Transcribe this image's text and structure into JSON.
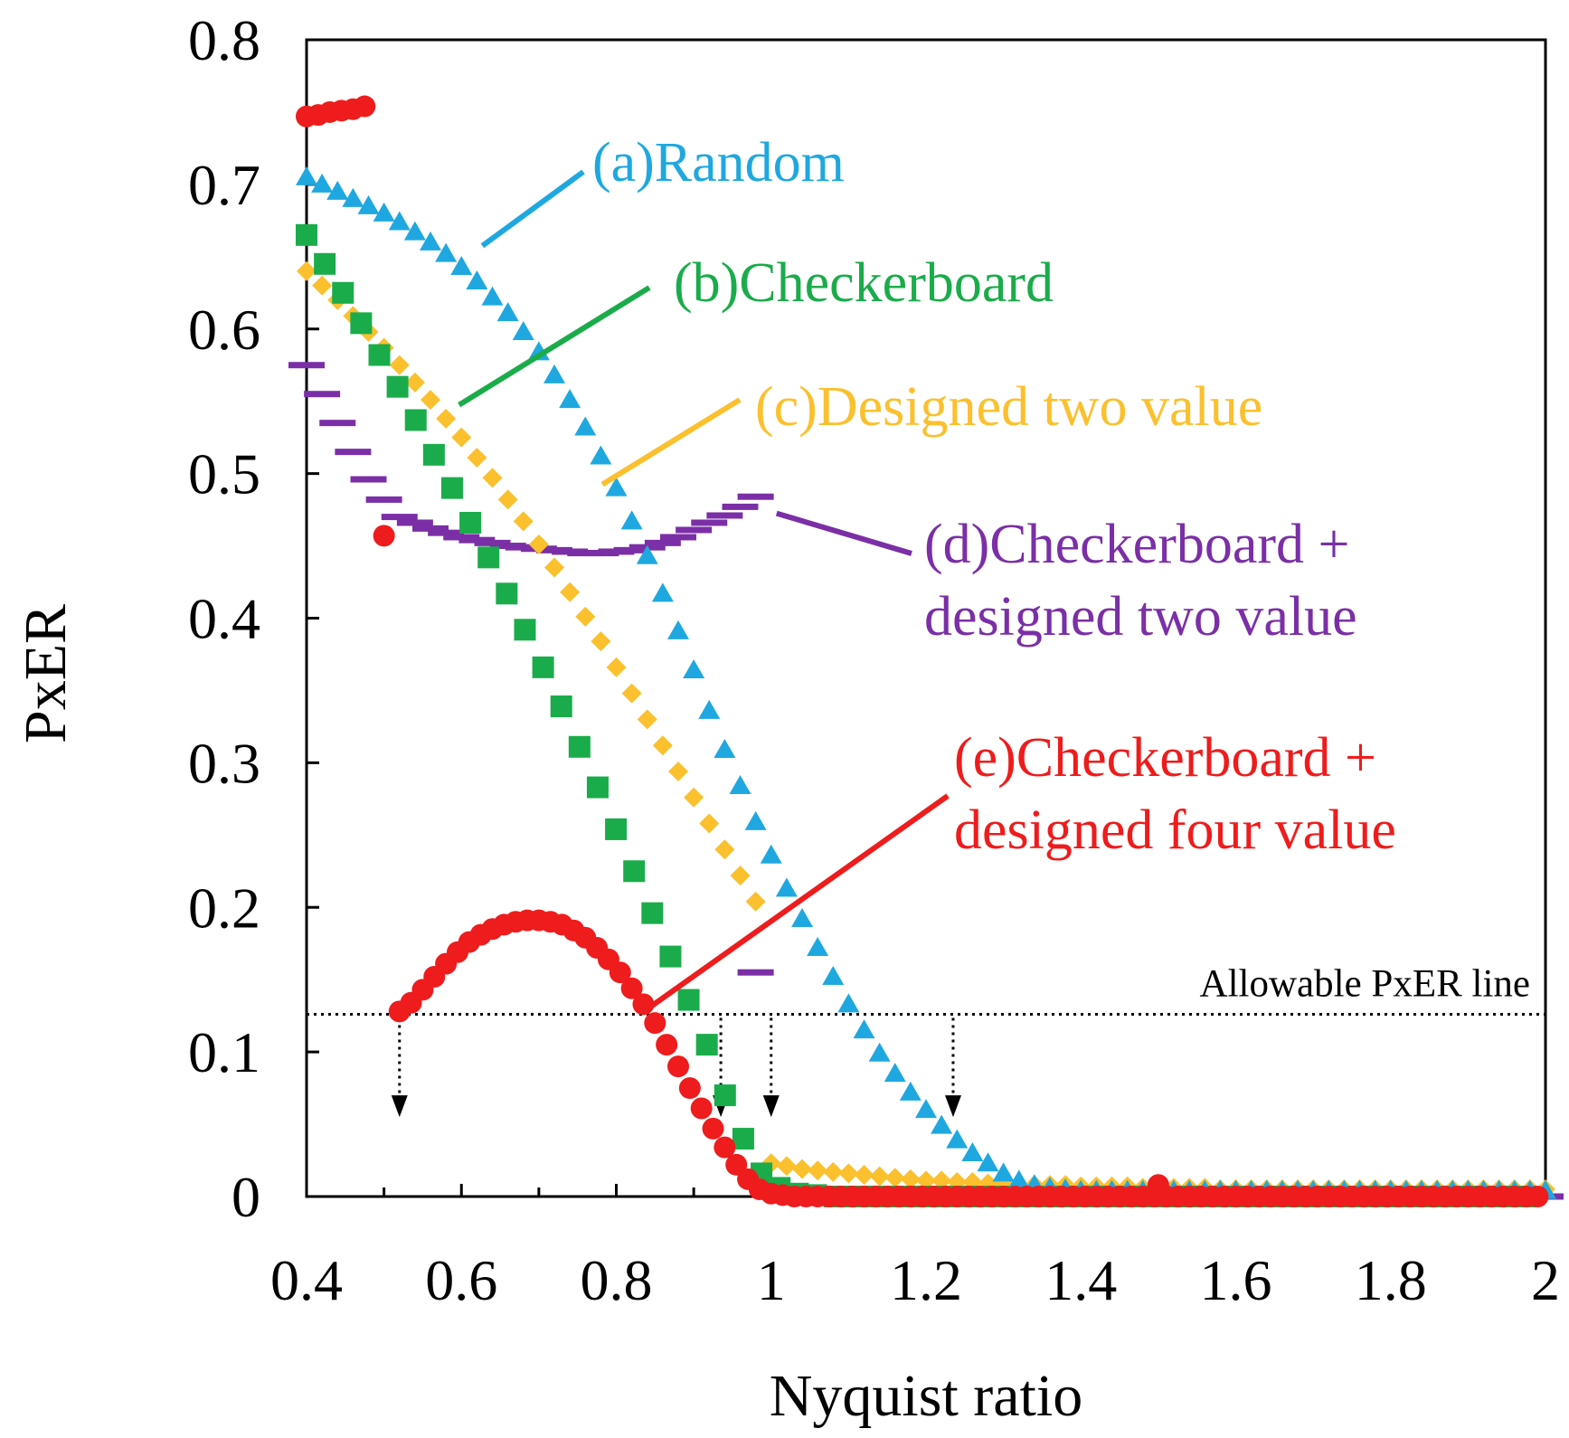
{
  "chart_data": {
    "type": "scatter",
    "xlabel": "Nyquist ratio",
    "ylabel": "PxER",
    "xlim": [
      0.4,
      2.0
    ],
    "ylim": [
      0,
      0.8
    ],
    "xticks": [
      0.4,
      0.6,
      0.8,
      1.0,
      1.2,
      1.4,
      1.6,
      1.8,
      2.0
    ],
    "xtick_labels": [
      "0.4",
      "0.6",
      "0.8",
      "1",
      "1.2",
      "1.4",
      "1.6",
      "1.8",
      "2"
    ],
    "yticks": [
      0,
      0.1,
      0.2,
      0.3,
      0.4,
      0.5,
      0.6,
      0.7,
      0.8
    ],
    "ytick_labels": [
      "0",
      "0.1",
      "0.2",
      "0.3",
      "0.4",
      "0.5",
      "0.6",
      "0.7",
      "0.8"
    ],
    "grid": false,
    "series": [
      {
        "id": "a",
        "name": "(a)Random",
        "marker": "triangle",
        "color": "#1fa8e0",
        "x_start": 0.4,
        "x_step": 0.02,
        "values": [
          0.705,
          0.7,
          0.695,
          0.69,
          0.685,
          0.68,
          0.674,
          0.667,
          0.66,
          0.652,
          0.643,
          0.633,
          0.622,
          0.611,
          0.598,
          0.584,
          0.568,
          0.551,
          0.532,
          0.512,
          0.49,
          0.467,
          0.443,
          0.417,
          0.391,
          0.364,
          0.336,
          0.309,
          0.284,
          0.259,
          0.236,
          0.213,
          0.192,
          0.172,
          0.152,
          0.133,
          0.115,
          0.099,
          0.085,
          0.072,
          0.06,
          0.049,
          0.039,
          0.03,
          0.023,
          0.016,
          0.011,
          0.008,
          0.006,
          0.005,
          0.004,
          0.004,
          0.004,
          0.004,
          0.004,
          0.004,
          0.004,
          0.004,
          0.004,
          0.004,
          0.004,
          0.004,
          0.004,
          0.004,
          0.004,
          0.004,
          0.004,
          0.004,
          0.004,
          0.004,
          0.004,
          0.004,
          0.004,
          0.004,
          0.004,
          0.004,
          0.004,
          0.004,
          0.004,
          0.004,
          0.004
        ]
      },
      {
        "id": "b",
        "name": "(b)Checkerboard",
        "marker": "square",
        "color": "#1aac4a",
        "x_start": 0.4,
        "x_step": 0.0235,
        "values": [
          0.665,
          0.645,
          0.625,
          0.604,
          0.582,
          0.56,
          0.537,
          0.513,
          0.49,
          0.466,
          0.442,
          0.417,
          0.392,
          0.366,
          0.339,
          0.311,
          0.283,
          0.254,
          0.225,
          0.196,
          0.166,
          0.136,
          0.105,
          0.07,
          0.04,
          0.016,
          0.006,
          0.002,
          0.001,
          0.0,
          0.0,
          0.0,
          0.0,
          0.0,
          0.0,
          0.0,
          0.0,
          0.0,
          0.0,
          0.0,
          0.0,
          0.0,
          0.0,
          0.0,
          0.0,
          0.0,
          0.0,
          0.0,
          0.0,
          0.0,
          0.0,
          0.0,
          0.0,
          0.0,
          0.0,
          0.0,
          0.0,
          0.0,
          0.0,
          0.0,
          0.0,
          0.0,
          0.0,
          0.0,
          0.0,
          0.0,
          0.0,
          0.0
        ]
      },
      {
        "id": "c",
        "name": "(c)Designed two value",
        "marker": "diamond",
        "color": "#fbc02d",
        "x_start": 0.4,
        "x_step": 0.02,
        "gap_after": 0.98,
        "values": [
          0.64,
          0.63,
          0.62,
          0.609,
          0.598,
          0.587,
          0.575,
          0.563,
          0.551,
          0.538,
          0.525,
          0.511,
          0.497,
          0.482,
          0.467,
          0.451,
          0.435,
          0.418,
          0.401,
          0.384,
          0.366,
          0.348,
          0.33,
          0.312,
          0.294,
          0.276,
          0.258,
          0.24,
          0.222,
          0.204
        ],
        "tail_x_start": 1.0,
        "tail_x_step": 0.02,
        "tail_values": [
          0.023,
          0.021,
          0.019,
          0.018,
          0.017,
          0.016,
          0.015,
          0.014,
          0.013,
          0.012,
          0.011,
          0.011,
          0.01,
          0.01,
          0.009,
          0.009,
          0.008,
          0.008,
          0.008,
          0.008,
          0.007,
          0.007,
          0.007,
          0.007,
          0.006,
          0.006,
          0.006,
          0.006,
          0.006,
          0.005,
          0.005,
          0.005,
          0.005,
          0.005,
          0.005,
          0.005,
          0.005,
          0.005,
          0.005,
          0.005,
          0.005,
          0.005,
          0.005,
          0.005,
          0.005,
          0.005,
          0.005,
          0.005,
          0.005,
          0.005,
          0.005
        ]
      },
      {
        "id": "d",
        "name": "(d)Checkerboard + designed two value",
        "marker": "dash",
        "color": "#7b2fa6",
        "x_start": 0.4,
        "x_step": 0.02,
        "values": [
          0.575,
          0.555,
          0.535,
          0.515,
          0.496,
          0.482,
          0.47,
          0.466,
          0.462,
          0.459,
          0.456,
          0.454,
          0.452,
          0.45,
          0.449,
          0.448,
          0.447,
          0.446,
          0.445,
          0.445,
          0.446,
          0.447,
          0.449,
          0.452,
          0.456,
          0.461,
          0.466,
          0.471,
          0.477,
          0.484
        ],
        "extra_points": [
          [
            0.98,
            0.155
          ],
          [
            2.0,
            0.0
          ]
        ]
      },
      {
        "id": "e",
        "name": "(e)Checkerboard + designed four value",
        "marker": "circle",
        "color": "#ee1c1c",
        "segment1": [
          [
            0.4,
            0.747
          ],
          [
            0.415,
            0.748
          ],
          [
            0.43,
            0.75
          ],
          [
            0.445,
            0.751
          ],
          [
            0.46,
            0.752
          ],
          [
            0.475,
            0.754
          ],
          [
            0.5,
            0.457
          ]
        ],
        "x_start": 0.52,
        "x_step": 0.015,
        "values": [
          0.128,
          0.134,
          0.143,
          0.152,
          0.161,
          0.169,
          0.176,
          0.181,
          0.185,
          0.188,
          0.19,
          0.191,
          0.191,
          0.19,
          0.188,
          0.184,
          0.179,
          0.172,
          0.164,
          0.155,
          0.144,
          0.133,
          0.12,
          0.105,
          0.09,
          0.075,
          0.061,
          0.047,
          0.034,
          0.022,
          0.012,
          0.005,
          0.002,
          0.001,
          0.0,
          0.0,
          0.0,
          0.0,
          0.0,
          0.0,
          0.0,
          0.0,
          0.0,
          0.0,
          0.0,
          0.0,
          0.0,
          0.0,
          0.0,
          0.0,
          0.0,
          0.0,
          0.0,
          0.0,
          0.0,
          0.0,
          0.0,
          0.0,
          0.0,
          0.0,
          0.0,
          0.0,
          0.0,
          0.0,
          0.0,
          0.0,
          0.0,
          0.0,
          0.0,
          0.0,
          0.0,
          0.0,
          0.0,
          0.0,
          0.0,
          0.0,
          0.0,
          0.0,
          0.0,
          0.0,
          0.0,
          0.0,
          0.0,
          0.0,
          0.0,
          0.0,
          0.0,
          0.0,
          0.0,
          0.0,
          0.0,
          0.0,
          0.0,
          0.0,
          0.0,
          0.0,
          0.0,
          0.0,
          0.0,
          0.0,
          0.0
        ],
        "bump_x": 1.5,
        "bump_value": 0.008
      }
    ],
    "reference_line": {
      "y": 0.126,
      "label": "Allowable  PxER line",
      "style": "dotted",
      "color": "#000000"
    },
    "arrows": [
      0.52,
      0.935,
      1.0,
      1.235
    ],
    "annotations": [
      {
        "series": "a",
        "lines": [
          "(a)Random"
        ],
        "color": "#1fa8e0",
        "points_to": [
          0.62,
          0.655
        ]
      },
      {
        "series": "b",
        "lines": [
          "(b)Checkerboard"
        ],
        "color": "#1aac4a",
        "points_to": [
          0.59,
          0.545
        ]
      },
      {
        "series": "c",
        "lines": [
          "(c)Designed two value"
        ],
        "color": "#fbc02d",
        "points_to": [
          0.775,
          0.49
        ]
      },
      {
        "series": "d",
        "lines": [
          "(d)Checkerboard +",
          "designed two value"
        ],
        "color": "#7b2fa6",
        "points_to": [
          1.0,
          0.47
        ]
      },
      {
        "series": "e",
        "lines": [
          "(e)Checkerboard +",
          "designed four value"
        ],
        "color": "#ee1c1c",
        "points_to": [
          0.83,
          0.126
        ]
      }
    ]
  }
}
